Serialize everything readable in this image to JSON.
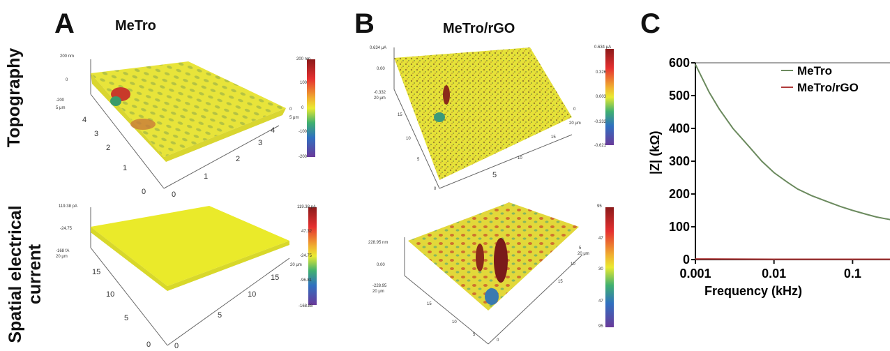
{
  "rows": {
    "top": "Topography",
    "bottom_line1": "Spatial electrical",
    "bottom_line2": "current"
  },
  "panels": {
    "A": {
      "letter": "A",
      "title": "MeTro"
    },
    "B": {
      "letter": "B",
      "title": "MeTro/rGO"
    },
    "C": {
      "letter": "C"
    }
  },
  "surfaces": {
    "a_top": {
      "z_labels": [
        "200 nm",
        "0",
        "-200"
      ],
      "y_edge_label": "5 μm",
      "x_ticks": [
        "0",
        "1",
        "2",
        "3",
        "4",
        "5"
      ],
      "y_ticks": [
        "0",
        "1",
        "2",
        "3",
        "4"
      ],
      "x_end_labels": [
        "0",
        "5 μm"
      ],
      "colorbar": [
        "200 nm",
        "100",
        "0",
        "-100",
        "-200"
      ]
    },
    "a_bottom": {
      "z_labels": [
        "119.38 pA",
        "-24.75",
        "-168 fA"
      ],
      "y_edge_label": "20 μm",
      "x_ticks": [
        "0",
        "5",
        "10",
        "15",
        "20 μm"
      ],
      "y_ticks": [
        "0",
        "5",
        "10",
        "15"
      ],
      "colorbar": [
        "119.38 pA",
        "47.32",
        "-24.75",
        "-96.81",
        "-168.88"
      ]
    },
    "b_top": {
      "z_labels": [
        "0.634 μA",
        "0.00",
        "-0.332",
        "20 μm"
      ],
      "x_ticks": [
        "5",
        "10",
        "15",
        "20 μm"
      ],
      "y_ticks": [
        "0",
        "5",
        "10",
        "15"
      ],
      "x_end_labels": [
        "0"
      ],
      "colorbar": [
        "0.634 μA",
        "0.326",
        "0.003",
        "-0.332",
        "-0.621"
      ]
    },
    "b_bottom": {
      "z_labels": [
        "228.95 nm",
        "0.00",
        "-228.95",
        "20 μm"
      ],
      "x_ticks": [
        "5",
        "10",
        "15",
        "20 μm"
      ],
      "y_ticks": [
        "5",
        "10",
        "15"
      ],
      "x_end_labels": [
        "0"
      ],
      "colorbar": [
        "95",
        "47",
        "30",
        "47",
        "95"
      ]
    }
  },
  "chart_data": {
    "type": "line",
    "title": "",
    "xlabel": "Frequency (kHz)",
    "ylabel": "|Z| (kΩ)",
    "x_scale": "log",
    "x_ticks": [
      "0.001",
      "0.01",
      "0.1"
    ],
    "y_ticks": [
      "0",
      "100",
      "200",
      "300",
      "400",
      "500",
      "600"
    ],
    "xlim": [
      0.001,
      0.5
    ],
    "ylim": [
      0,
      600
    ],
    "legend_position": "top-right",
    "series": [
      {
        "name": "MeTro",
        "color": "#6b8a5e",
        "x": [
          0.001,
          0.0015,
          0.002,
          0.003,
          0.005,
          0.007,
          0.01,
          0.015,
          0.02,
          0.03,
          0.05,
          0.07,
          0.1,
          0.15,
          0.2,
          0.3,
          0.45
        ],
        "y": [
          595,
          510,
          460,
          400,
          340,
          300,
          265,
          235,
          215,
          195,
          175,
          162,
          150,
          138,
          130,
          122,
          115
        ]
      },
      {
        "name": "MeTro/rGO",
        "color": "#b03a3a",
        "x": [
          0.001,
          0.01,
          0.1,
          0.45
        ],
        "y": [
          2,
          1,
          1,
          1
        ]
      }
    ]
  }
}
